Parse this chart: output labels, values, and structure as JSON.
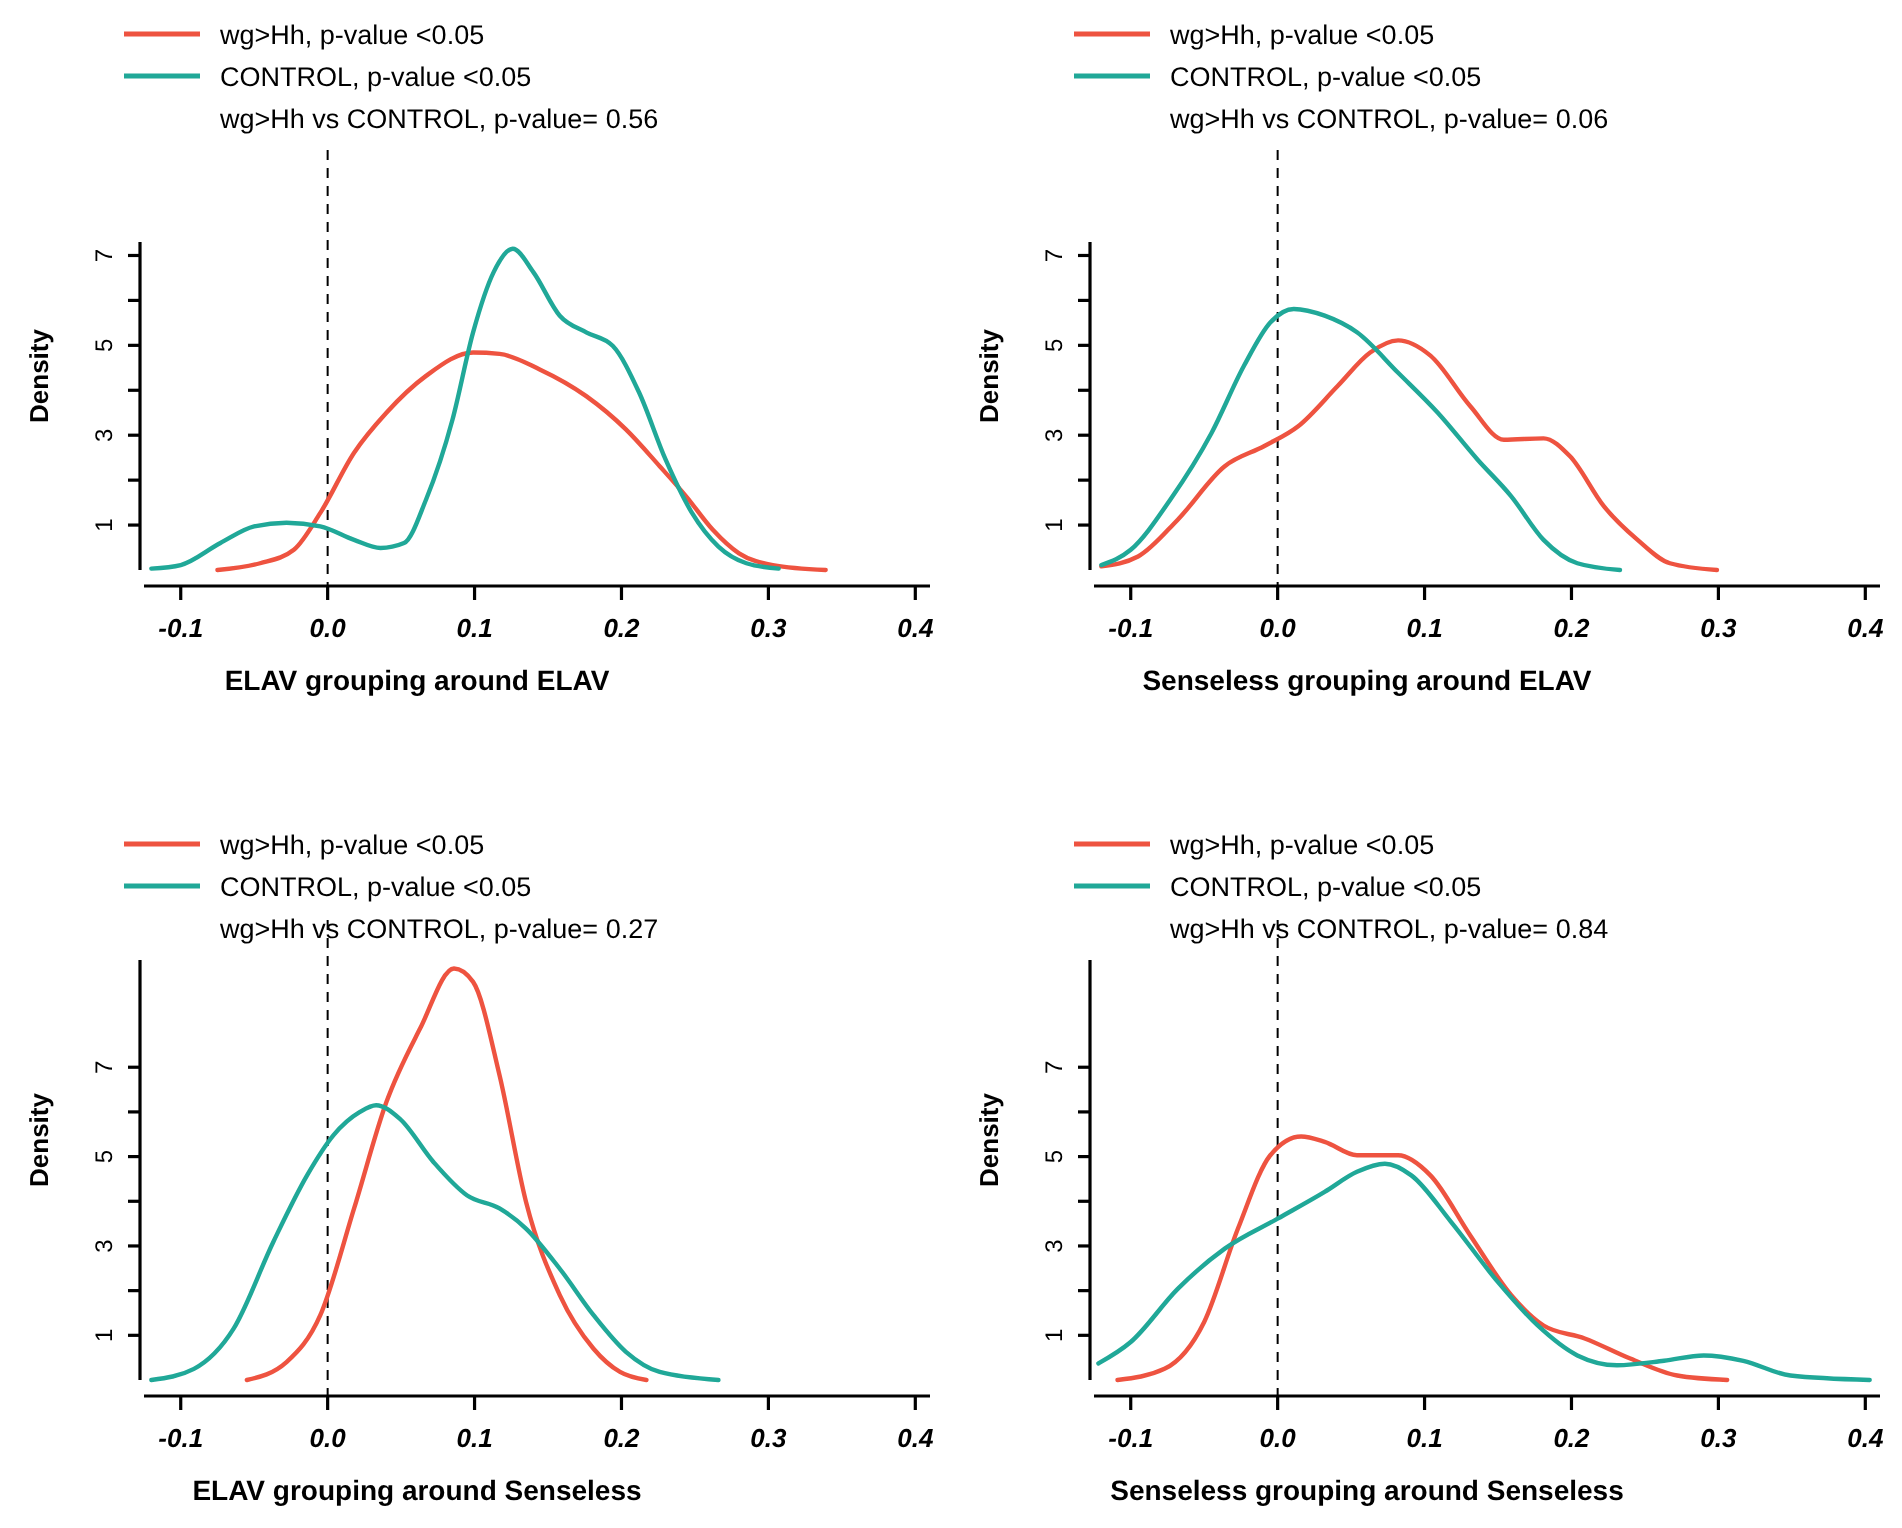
{
  "chart_data": [
    {
      "type": "line",
      "xlabel": "ELAV grouping around ELAV",
      "ylabel": "Density",
      "legend": "top left",
      "annotations": [
        "wg>Hh vs CONTROL, p-value= 0.56"
      ],
      "xlim": [
        -0.125,
        0.41
      ],
      "xticks": [
        {
          "value": -0.1,
          "label": "-0.1"
        },
        {
          "value": 0,
          "label": "0.0"
        },
        {
          "value": 0.1,
          "label": "0.1"
        },
        {
          "value": 0.2,
          "label": "0.2"
        },
        {
          "value": 0.3,
          "label": "0.3"
        },
        {
          "value": 0.4,
          "label": "0.4"
        }
      ],
      "ylim": [
        0,
        7.3
      ],
      "yticks": [
        1,
        {
          "value": 2,
          "label": null
        },
        3,
        {
          "value": 4,
          "label": null
        },
        5,
        {
          "value": 6,
          "label": null
        },
        7
      ],
      "ref_lines": [
        {
          "axis": "x",
          "value": 0,
          "color": "#000000",
          "line_style": "dashed"
        }
      ],
      "series": [
        {
          "name": "wg>Hh, p-value <0.05",
          "color": "#ee5340",
          "x": [
            -0.075,
            -0.046,
            -0.023,
            -0.005,
            0.018,
            0.04,
            0.067,
            0.099,
            0.117,
            0.144,
            0.176,
            0.203,
            0.226,
            0.244,
            0.262,
            0.28,
            0.303,
            0.339
          ],
          "values": [
            0,
            0.15,
            0.45,
            1.27,
            2.61,
            3.5,
            4.32,
            4.84,
            4.81,
            4.47,
            3.87,
            3.13,
            2.31,
            1.64,
            0.9,
            0.37,
            0.11,
            0
          ]
        },
        {
          "name": "CONTROL, p-value <0.05",
          "color": "#20a898",
          "x": [
            -0.12,
            -0.1,
            -0.073,
            -0.05,
            -0.028,
            -0.005,
            0.018,
            0.036,
            0.052,
            0.067,
            0.085,
            0.099,
            0.113,
            0.126,
            0.14,
            0.158,
            0.176,
            0.194,
            0.212,
            0.23,
            0.248,
            0.266,
            0.285,
            0.307
          ],
          "values": [
            0.03,
            0.11,
            0.6,
            0.97,
            1.05,
            0.97,
            0.67,
            0.49,
            0.6,
            1.57,
            3.35,
            5.29,
            6.63,
            7.15,
            6.63,
            5.66,
            5.29,
            4.99,
            3.95,
            2.46,
            1.27,
            0.52,
            0.15,
            0.03
          ]
        }
      ]
    },
    {
      "type": "line",
      "xlabel": "Senseless grouping around ELAV",
      "ylabel": "Density",
      "legend": "top left",
      "annotations": [
        "wg>Hh vs CONTROL, p-value= 0.06"
      ],
      "xlim": [
        -0.125,
        0.41
      ],
      "xticks": [
        {
          "value": -0.1,
          "label": "-0.1"
        },
        {
          "value": 0,
          "label": "0.0"
        },
        {
          "value": 0.1,
          "label": "0.1"
        },
        {
          "value": 0.2,
          "label": "0.2"
        },
        {
          "value": 0.3,
          "label": "0.3"
        },
        {
          "value": 0.4,
          "label": "0.4"
        }
      ],
      "ylim": [
        0,
        7.3
      ],
      "yticks": [
        1,
        {
          "value": 2,
          "label": null
        },
        3,
        {
          "value": 4,
          "label": null
        },
        5,
        {
          "value": 6,
          "label": null
        },
        7
      ],
      "ref_lines": [
        {
          "axis": "x",
          "value": 0,
          "color": "#000000",
          "line_style": "dashed"
        }
      ],
      "series": [
        {
          "name": "wg>Hh, p-value <0.05",
          "color": "#ee5340",
          "x": [
            -0.12,
            -0.095,
            -0.068,
            -0.036,
            -0.009,
            0.014,
            0.041,
            0.063,
            0.082,
            0.104,
            0.131,
            0.154,
            0.181,
            0.199,
            0.222,
            0.245,
            0.267,
            0.299
          ],
          "values": [
            0.08,
            0.3,
            1.12,
            2.31,
            2.76,
            3.2,
            4.1,
            4.84,
            5.11,
            4.77,
            3.65,
            2.9,
            2.93,
            2.53,
            1.42,
            0.67,
            0.15,
            0
          ]
        },
        {
          "name": "CONTROL, p-value <0.05",
          "color": "#20a898",
          "x": [
            -0.12,
            -0.1,
            -0.073,
            -0.045,
            -0.023,
            -0.005,
            0.011,
            0.032,
            0.054,
            0.082,
            0.109,
            0.136,
            0.159,
            0.181,
            0.204,
            0.233
          ],
          "values": [
            0.11,
            0.45,
            1.57,
            3.05,
            4.54,
            5.51,
            5.81,
            5.66,
            5.29,
            4.39,
            3.5,
            2.46,
            1.64,
            0.67,
            0.15,
            0
          ]
        }
      ]
    },
    {
      "type": "line",
      "xlabel": "ELAV grouping around Senseless",
      "ylabel": "Density",
      "legend": "top left",
      "annotations": [
        "wg>Hh vs CONTROL, p-value= 0.27"
      ],
      "xlim": [
        -0.125,
        0.41
      ],
      "xticks": [
        {
          "value": -0.1,
          "label": "-0.1"
        },
        {
          "value": 0,
          "label": "0.0"
        },
        {
          "value": 0.1,
          "label": "0.1"
        },
        {
          "value": 0.2,
          "label": "0.2"
        },
        {
          "value": 0.3,
          "label": "0.3"
        },
        {
          "value": 0.4,
          "label": "0.4"
        }
      ],
      "ylim": [
        0,
        9.4
      ],
      "yticks": [
        1,
        {
          "value": 2,
          "label": null
        },
        3,
        {
          "value": 4,
          "label": null
        },
        5,
        {
          "value": 6,
          "label": null
        },
        7
      ],
      "ref_lines": [
        {
          "axis": "x",
          "value": 0,
          "color": "#000000",
          "line_style": "dashed"
        }
      ],
      "series": [
        {
          "name": "wg>Hh, p-value <0.05",
          "color": "#ee5340",
          "x": [
            -0.055,
            -0.028,
            -0.005,
            0.018,
            0.04,
            0.063,
            0.086,
            0.099,
            0.117,
            0.135,
            0.158,
            0.181,
            0.199,
            0.217
          ],
          "values": [
            0,
            0.4,
            1.45,
            3.84,
            6.22,
            7.87,
            9.21,
            8.91,
            6.82,
            3.99,
            1.9,
            0.7,
            0.18,
            0
          ]
        },
        {
          "name": "CONTROL, p-value <0.05",
          "color": "#20a898",
          "x": [
            -0.12,
            -0.091,
            -0.064,
            -0.037,
            -0.014,
            0.004,
            0.022,
            0.033,
            0.049,
            0.072,
            0.095,
            0.117,
            0.135,
            0.158,
            0.181,
            0.203,
            0.226,
            0.266
          ],
          "values": [
            0,
            0.25,
            1.15,
            3.09,
            4.58,
            5.48,
            6,
            6.15,
            5.85,
            4.88,
            4.13,
            3.84,
            3.39,
            2.49,
            1.45,
            0.63,
            0.18,
            0
          ]
        }
      ]
    },
    {
      "type": "line",
      "xlabel": "Senseless grouping around Senseless",
      "ylabel": "Density",
      "legend": "top left",
      "annotations": [
        "wg>Hh vs CONTROL, p-value= 0.84"
      ],
      "xlim": [
        -0.125,
        0.41
      ],
      "xticks": [
        {
          "value": -0.1,
          "label": "-0.1"
        },
        {
          "value": 0,
          "label": "0.0"
        },
        {
          "value": 0.1,
          "label": "0.1"
        },
        {
          "value": 0.2,
          "label": "0.2"
        },
        {
          "value": 0.3,
          "label": "0.3"
        },
        {
          "value": 0.4,
          "label": "0.4"
        }
      ],
      "ylim": [
        0,
        9.4
      ],
      "yticks": [
        1,
        {
          "value": 2,
          "label": null
        },
        3,
        {
          "value": 4,
          "label": null
        },
        5,
        {
          "value": 6,
          "label": null
        },
        7
      ],
      "ref_lines": [
        {
          "axis": "x",
          "value": 0,
          "color": "#000000",
          "line_style": "dashed"
        }
      ],
      "series": [
        {
          "name": "wg>Hh, p-value <0.05",
          "color": "#ee5340",
          "x": [
            -0.109,
            -0.077,
            -0.05,
            -0.027,
            -0.005,
            0.016,
            0.032,
            0.054,
            0.082,
            0.104,
            0.131,
            0.159,
            0.181,
            0.209,
            0.24,
            0.272,
            0.306
          ],
          "values": [
            0,
            0.25,
            1.3,
            3.39,
            5.03,
            5.45,
            5.33,
            5.03,
            5.03,
            4.58,
            3.24,
            1.9,
            1.22,
            0.93,
            0.48,
            0.1,
            0
          ]
        },
        {
          "name": "CONTROL, p-value <0.05",
          "color": "#20a898",
          "x": [
            -0.122,
            -0.1,
            -0.068,
            -0.036,
            0,
            0.032,
            0.054,
            0.073,
            0.091,
            0.118,
            0.15,
            0.177,
            0.204,
            0.231,
            0.263,
            0.29,
            0.317,
            0.349,
            0.403
          ],
          "values": [
            0.37,
            0.85,
            2.04,
            2.94,
            3.61,
            4.21,
            4.66,
            4.84,
            4.58,
            3.54,
            2.19,
            1.22,
            0.55,
            0.33,
            0.43,
            0.55,
            0.43,
            0.1,
            0
          ]
        }
      ]
    }
  ]
}
